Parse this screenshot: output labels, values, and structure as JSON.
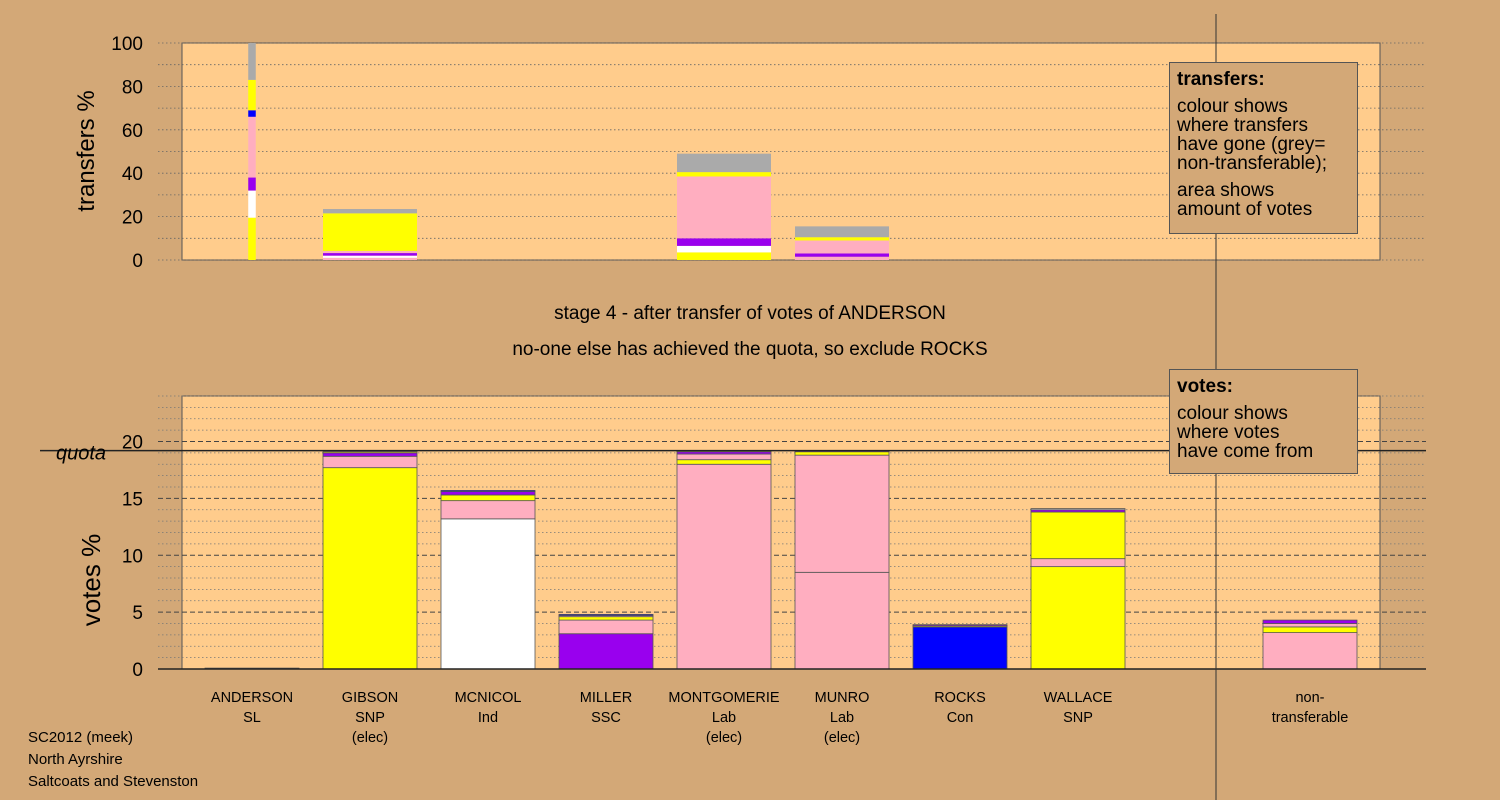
{
  "chart_data": [
    {
      "type": "bar",
      "stacked": true,
      "panel": "transfers",
      "ylabel": "transfers %",
      "ylim": [
        0,
        100
      ],
      "yticks": [
        0,
        20,
        40,
        60,
        80,
        100
      ],
      "grid": "dotted horizontal",
      "categories": [
        "ANDERSON",
        "GIBSON",
        "MCNICOL",
        "MILLER",
        "MONTGOMERIE",
        "MUNRO",
        "ROCKS",
        "WALLACE"
      ],
      "bars": [
        {
          "category": "ANDERSON",
          "width_weight": 0.08,
          "segments": [
            {
              "color": "#ffff00",
              "value": 19.5
            },
            {
              "color": "#ffffff",
              "value": 12.5
            },
            {
              "color": "#9900ee",
              "value": 6
            },
            {
              "color": "#ffaec0",
              "value": 28
            },
            {
              "color": "#0000ff",
              "value": 3
            },
            {
              "color": "#ffff00",
              "value": 14
            },
            {
              "color": "#aaaaaa",
              "value": 17
            }
          ]
        },
        {
          "category": "GIBSON",
          "width_weight": 1,
          "segments": [
            {
              "color": "#ffaec0",
              "value": 1
            },
            {
              "color": "#ffffff",
              "value": 1
            },
            {
              "color": "#9900ee",
              "value": 1.2
            },
            {
              "color": "#ffaec0",
              "value": 1
            },
            {
              "color": "#ffff00",
              "value": 17.3
            },
            {
              "color": "#aaaaaa",
              "value": 2
            }
          ]
        },
        {
          "category": "MONTGOMERIE",
          "width_weight": 1,
          "segments": [
            {
              "color": "#ffff00",
              "value": 3.5
            },
            {
              "color": "#ffffff",
              "value": 3
            },
            {
              "color": "#9900ee",
              "value": 3.5
            },
            {
              "color": "#ffaec0",
              "value": 28.5
            },
            {
              "color": "#ffff00",
              "value": 2
            },
            {
              "color": "#aaaaaa",
              "value": 8.5
            }
          ]
        },
        {
          "category": "MUNRO",
          "width_weight": 1,
          "segments": [
            {
              "color": "#ffaec0",
              "value": 1.5
            },
            {
              "color": "#9900ee",
              "value": 1.5
            },
            {
              "color": "#ffaec0",
              "value": 6
            },
            {
              "color": "#ffff00",
              "value": 1.5
            },
            {
              "color": "#aaaaaa",
              "value": 5
            }
          ]
        }
      ],
      "legend": {
        "title": "transfers:",
        "lines_a": [
          "colour shows",
          "where transfers",
          "have gone (grey=",
          "non-transferable);"
        ],
        "lines_b": [
          "area shows",
          "amount of votes"
        ]
      }
    },
    {
      "type": "bar",
      "stacked": true,
      "panel": "votes",
      "ylabel": "votes %",
      "ylim": [
        0,
        24
      ],
      "yticks": [
        0,
        5,
        10,
        15,
        20
      ],
      "grid": "dashed horizontal",
      "quota": {
        "label": "quota",
        "value": 19.2
      },
      "categories": [
        {
          "name": "ANDERSON",
          "party": "SL",
          "status": ""
        },
        {
          "name": "GIBSON",
          "party": "SNP",
          "status": "(elec)"
        },
        {
          "name": "MCNICOL",
          "party": "Ind",
          "status": ""
        },
        {
          "name": "MILLER",
          "party": "SSC",
          "status": ""
        },
        {
          "name": "MONTGOMERIE",
          "party": "Lab",
          "status": "(elec)"
        },
        {
          "name": "MUNRO",
          "party": "Lab",
          "status": "(elec)"
        },
        {
          "name": "ROCKS",
          "party": "Con",
          "status": ""
        },
        {
          "name": "WALLACE",
          "party": "SNP",
          "status": ""
        },
        {
          "name": "non-",
          "party": "transferable",
          "status": ""
        }
      ],
      "bars": [
        {
          "category": "ANDERSON",
          "segments": [
            {
              "color": "#a0522d",
              "value": 0.08
            }
          ]
        },
        {
          "category": "GIBSON",
          "segments": [
            {
              "color": "#ffff00",
              "value": 17.7
            },
            {
              "color": "#ffaec0",
              "value": 1.0
            },
            {
              "color": "#9900ee",
              "value": 0.3
            },
            {
              "color": "#ffff00",
              "value": 0.1
            }
          ]
        },
        {
          "category": "MCNICOL",
          "segments": [
            {
              "color": "#ffffff",
              "value": 13.2
            },
            {
              "color": "#ffaec0",
              "value": 1.6
            },
            {
              "color": "#ffff00",
              "value": 0.5
            },
            {
              "color": "#9900ee",
              "value": 0.3
            },
            {
              "color": "#0000ff",
              "value": 0.1
            }
          ]
        },
        {
          "category": "MILLER",
          "segments": [
            {
              "color": "#9900ee",
              "value": 3.1
            },
            {
              "color": "#ffaec0",
              "value": 1.2
            },
            {
              "color": "#ffff00",
              "value": 0.3
            },
            {
              "color": "#ffaec0",
              "value": 0.1
            },
            {
              "color": "#0000ff",
              "value": 0.1
            }
          ]
        },
        {
          "category": "MONTGOMERIE",
          "segments": [
            {
              "color": "#ffaec0",
              "value": 18.0
            },
            {
              "color": "#ffff00",
              "value": 0.4
            },
            {
              "color": "#ffaec0",
              "value": 0.5
            },
            {
              "color": "#9900ee",
              "value": 0.2
            },
            {
              "color": "#ffff00",
              "value": 0.1
            }
          ]
        },
        {
          "category": "MUNRO",
          "segments": [
            {
              "color": "#ffaec0",
              "value": 8.5
            },
            {
              "color": "#ffaec0",
              "value": 10.3
            },
            {
              "color": "#ffff00",
              "value": 0.3
            },
            {
              "color": "#9900ee",
              "value": 0.1
            }
          ]
        },
        {
          "category": "ROCKS",
          "segments": [
            {
              "color": "#0000ff",
              "value": 3.7
            },
            {
              "color": "#ffff00",
              "value": 0.1
            },
            {
              "color": "#9900ee",
              "value": 0.1
            }
          ]
        },
        {
          "category": "WALLACE",
          "segments": [
            {
              "color": "#ffff00",
              "value": 9.0
            },
            {
              "color": "#ffaec0",
              "value": 0.7
            },
            {
              "color": "#ffff00",
              "value": 4.1
            },
            {
              "color": "#9900ee",
              "value": 0.2
            },
            {
              "color": "#ffffff",
              "value": 0.1
            }
          ]
        },
        {
          "category": "non-transferable",
          "segments": [
            {
              "color": "#ffaec0",
              "value": 3.2
            },
            {
              "color": "#ffff00",
              "value": 0.5
            },
            {
              "color": "#ffaec0",
              "value": 0.3
            },
            {
              "color": "#9900ee",
              "value": 0.3
            }
          ]
        }
      ],
      "legend": {
        "title": "votes:",
        "lines": [
          "colour shows",
          "where votes",
          "have come from"
        ]
      }
    }
  ],
  "captions": {
    "stage": "stage 4 - after transfer of votes of ANDERSON",
    "action": "no-one else has achieved the quota, so exclude ROCKS"
  },
  "footer": {
    "election": "SC2012 (meek)",
    "council": "North Ayrshire",
    "ward": "Saltcoats and Stevenston"
  },
  "colors": {
    "background": "#d3a877",
    "plot_area": "#ffcc8c",
    "snp": "#ffff00",
    "lab": "#ffaec0",
    "ssc": "#9900ee",
    "con": "#0000ff",
    "ind": "#ffffff",
    "non_transferable": "#aaaaaa"
  }
}
